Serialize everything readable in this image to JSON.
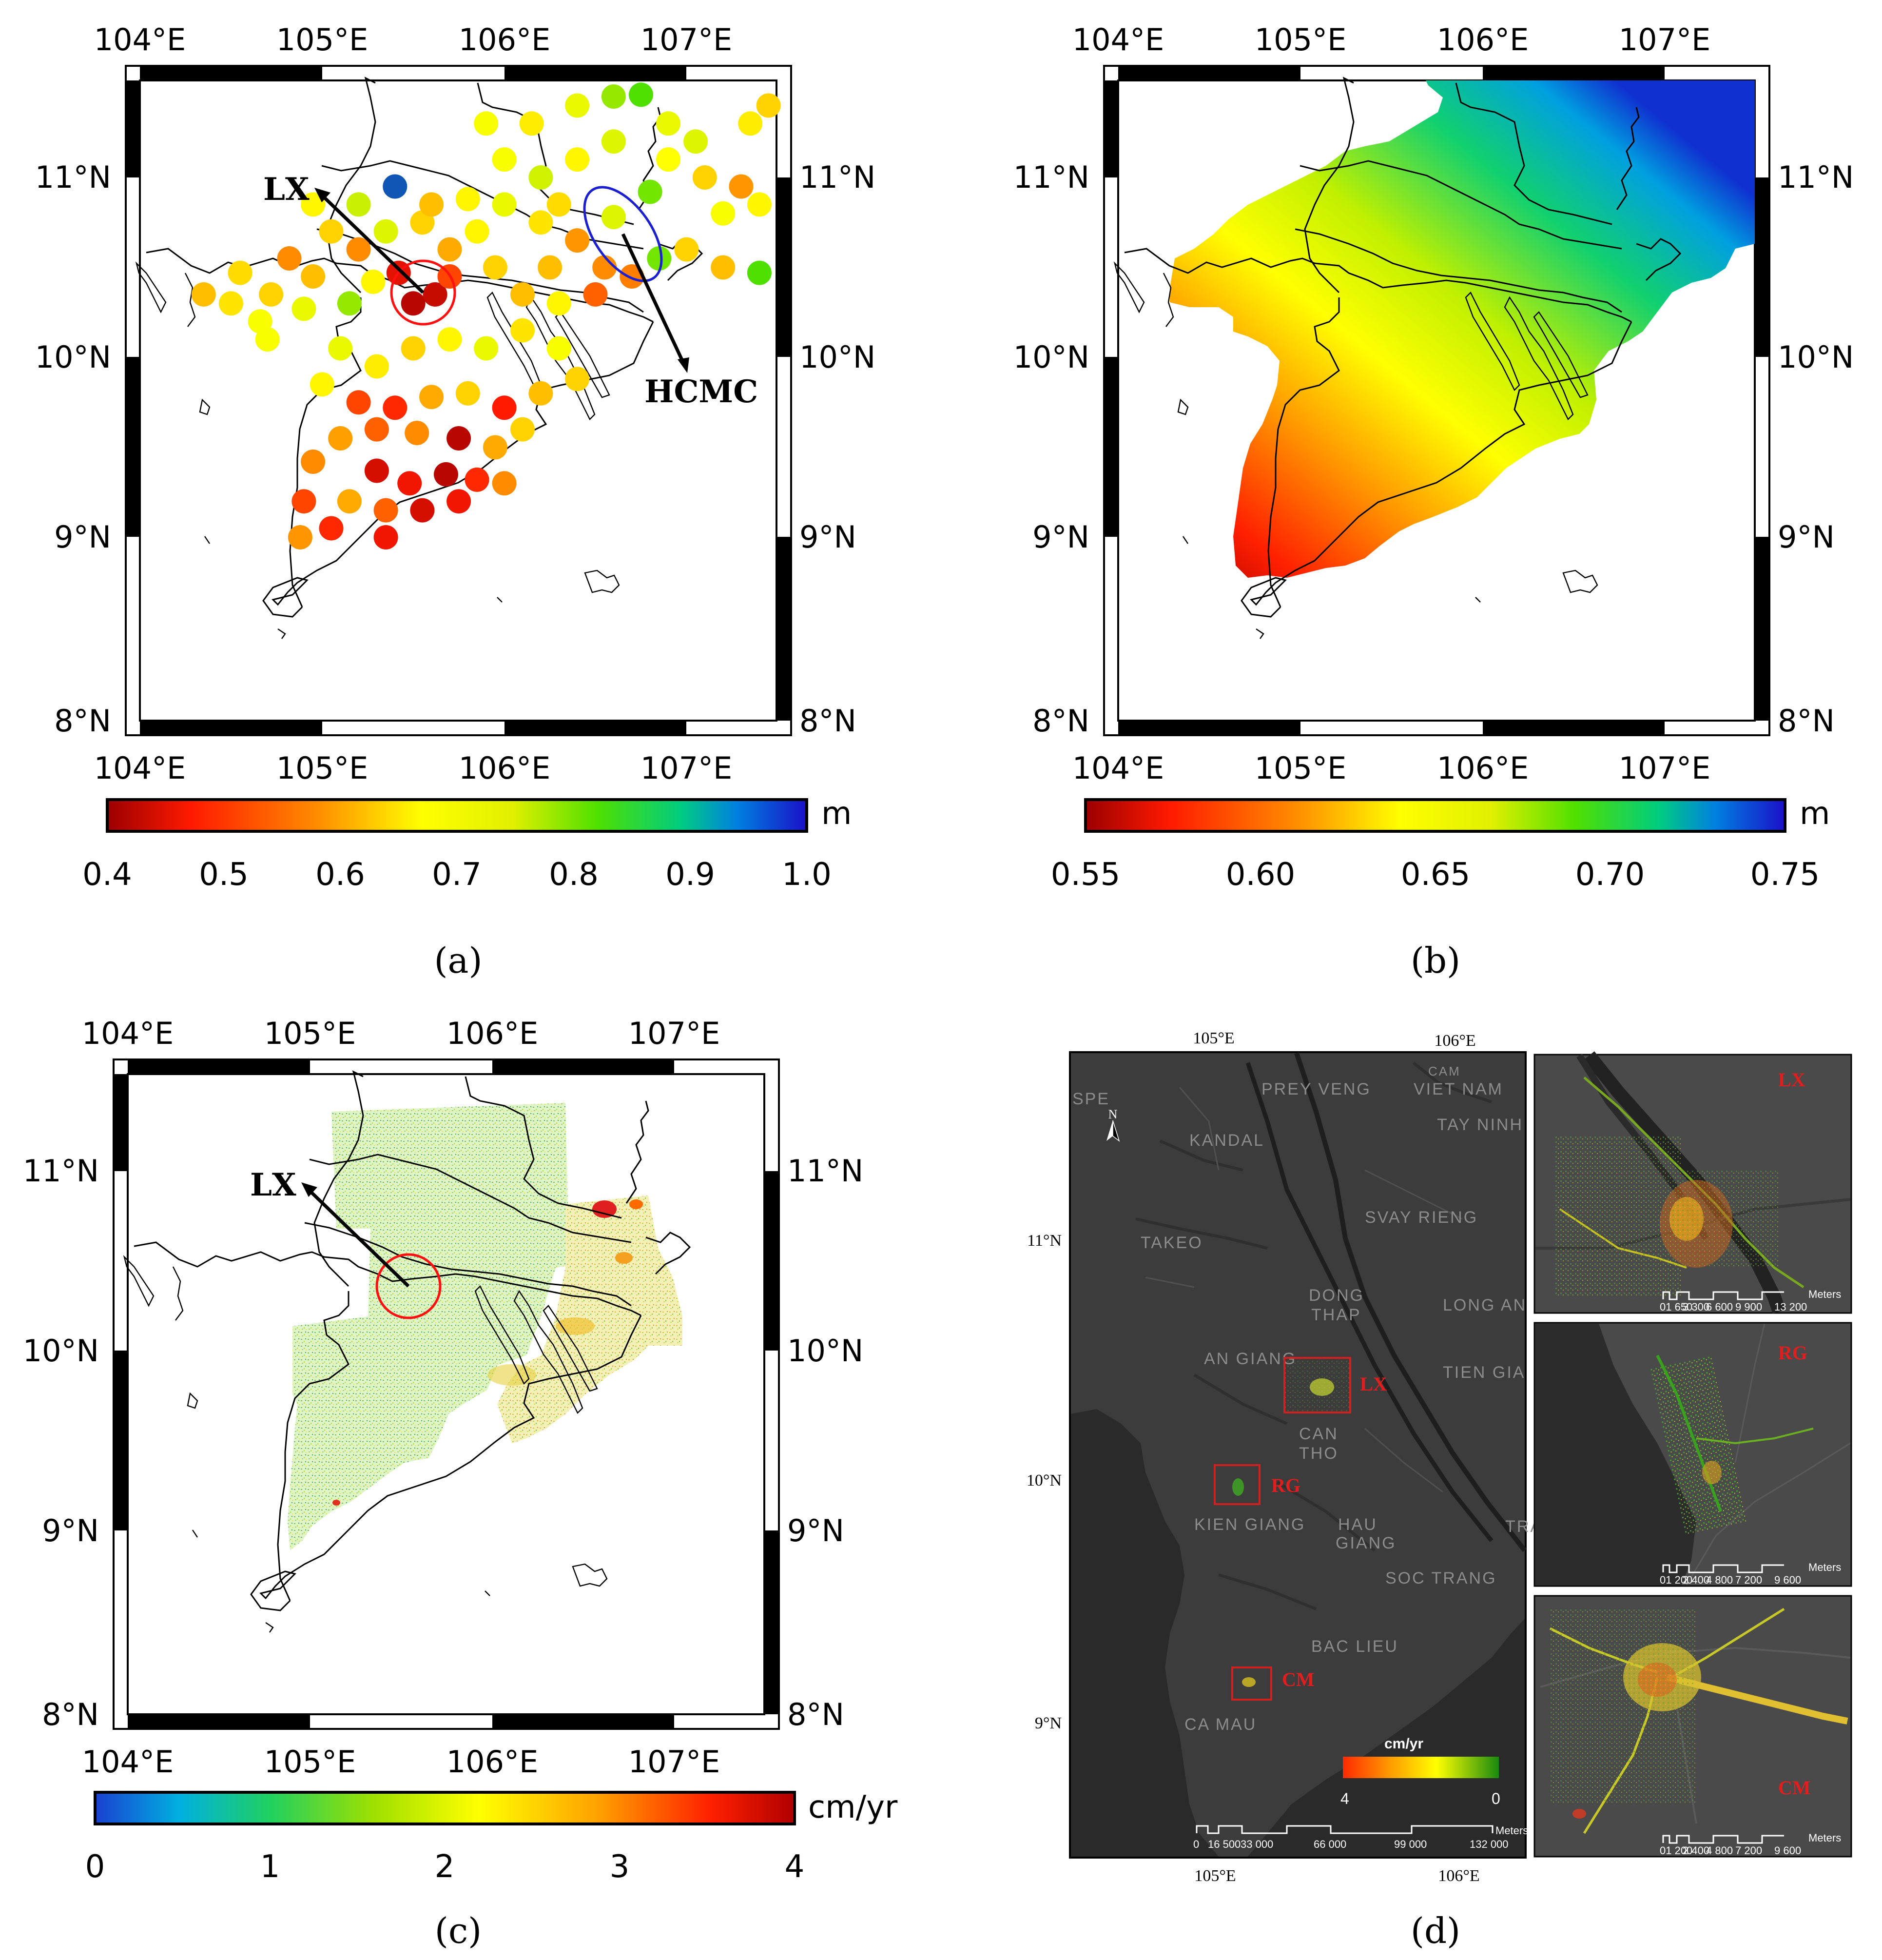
{
  "panels": {
    "a": {
      "label": "(a)",
      "lon_ticks": [
        "104°E",
        "105°E",
        "106°E",
        "107°E"
      ],
      "lat_ticks": [
        "11°N",
        "10°N",
        "9°N",
        "8°N"
      ],
      "annotations": {
        "lx": "LX",
        "hcmc": "HCMC"
      },
      "colorbar": {
        "ticks": [
          "0.4",
          "0.5",
          "0.6",
          "0.7",
          "0.8",
          "0.9",
          "1.0"
        ],
        "unit": "m"
      },
      "colors": {
        "low": "#c00000",
        "mid": "#ffff00",
        "high": "#0000cc"
      }
    },
    "b": {
      "label": "(b)",
      "lon_ticks": [
        "104°E",
        "105°E",
        "106°E",
        "107°E"
      ],
      "lat_ticks": [
        "11°N",
        "10°N",
        "9°N",
        "8°N"
      ],
      "colorbar": {
        "ticks": [
          "0.55",
          "0.60",
          "0.65",
          "0.70",
          "0.75"
        ],
        "unit": "m"
      }
    },
    "c": {
      "label": "(c)",
      "lon_ticks": [
        "104°E",
        "105°E",
        "106°E",
        "107°E"
      ],
      "lat_ticks": [
        "11°N",
        "10°N",
        "9°N",
        "8°N"
      ],
      "annotations": {
        "lx": "LX"
      },
      "colorbar": {
        "ticks": [
          "0",
          "1",
          "2",
          "3",
          "4"
        ],
        "unit": "cm/yr"
      }
    },
    "d": {
      "label": "(d)",
      "top_lon": [
        "105°E",
        "106°E"
      ],
      "bottom_lon": [
        "105°E",
        "106°E"
      ],
      "lat": [
        "11°N",
        "10°N",
        "9°N"
      ],
      "north": "N",
      "provinces": [
        "PREY VENG",
        "KANDAL",
        "VIET NAM",
        "TAY NINH",
        "TAKEO",
        "SVAY RIENG",
        "DONG",
        "THAP",
        "LONG AN",
        "AN GIANG",
        "TIEN GIA",
        "CAN",
        "THO",
        "KIEN GIANG",
        "HAU",
        "GIANG",
        "SOC TRANG",
        "TRA",
        "BAC LIEU",
        "CA MAU",
        "SPE",
        "CAM"
      ],
      "sites": [
        "LX",
        "RG",
        "CM"
      ],
      "legend": {
        "title": "cm/yr",
        "min": "4",
        "max": "0"
      },
      "scale_main": {
        "unit": "Meters",
        "labels": [
          "0",
          "16 500",
          "33 000",
          "66 000",
          "99 000",
          "132 000"
        ]
      },
      "insets": [
        {
          "site": "LX",
          "scale_unit": "Meters",
          "scale_labels": [
            "01 650",
            "3 300",
            "6 600",
            "9 900",
            "13 200"
          ]
        },
        {
          "site": "RG",
          "scale_unit": "Meters",
          "scale_labels": [
            "01 200",
            "2 400",
            "4 800",
            "7 200",
            "9 600"
          ]
        },
        {
          "site": "CM",
          "scale_unit": "Meters",
          "scale_labels": [
            "01 200",
            "2 400",
            "4 800",
            "7 200",
            "9 600"
          ]
        }
      ]
    }
  },
  "points_a": [
    {
      "lon": 104.55,
      "lat": 10.47,
      "v": 0.63
    },
    {
      "lon": 104.72,
      "lat": 10.35,
      "v": 0.62
    },
    {
      "lon": 104.66,
      "lat": 10.2,
      "v": 0.68
    },
    {
      "lon": 104.9,
      "lat": 10.27,
      "v": 0.7
    },
    {
      "lon": 104.82,
      "lat": 10.55,
      "v": 0.55
    },
    {
      "lon": 104.95,
      "lat": 10.45,
      "v": 0.6
    },
    {
      "lon": 105.15,
      "lat": 10.3,
      "v": 0.78
    },
    {
      "lon": 105.28,
      "lat": 10.42,
      "v": 0.66
    },
    {
      "lon": 105.42,
      "lat": 10.47,
      "v": 0.45
    },
    {
      "lon": 105.5,
      "lat": 10.3,
      "v": 0.42
    },
    {
      "lon": 105.62,
      "lat": 10.35,
      "v": 0.43
    },
    {
      "lon": 105.7,
      "lat": 10.45,
      "v": 0.5
    },
    {
      "lon": 105.2,
      "lat": 10.6,
      "v": 0.55
    },
    {
      "lon": 105.35,
      "lat": 10.7,
      "v": 0.72
    },
    {
      "lon": 105.55,
      "lat": 10.75,
      "v": 0.62
    },
    {
      "lon": 105.7,
      "lat": 10.6,
      "v": 0.58
    },
    {
      "lon": 105.85,
      "lat": 10.7,
      "v": 0.66
    },
    {
      "lon": 105.95,
      "lat": 10.5,
      "v": 0.62
    },
    {
      "lon": 105.1,
      "lat": 10.05,
      "v": 0.7
    },
    {
      "lon": 105.3,
      "lat": 9.95,
      "v": 0.65
    },
    {
      "lon": 105.5,
      "lat": 10.05,
      "v": 0.62
    },
    {
      "lon": 105.7,
      "lat": 10.1,
      "v": 0.66
    },
    {
      "lon": 105.9,
      "lat": 10.05,
      "v": 0.7
    },
    {
      "lon": 106.1,
      "lat": 10.15,
      "v": 0.64
    },
    {
      "lon": 106.3,
      "lat": 10.05,
      "v": 0.68
    },
    {
      "lon": 106.1,
      "lat": 10.35,
      "v": 0.6
    },
    {
      "lon": 106.3,
      "lat": 10.3,
      "v": 0.66
    },
    {
      "lon": 105.0,
      "lat": 9.85,
      "v": 0.66
    },
    {
      "lon": 105.2,
      "lat": 9.75,
      "v": 0.5
    },
    {
      "lon": 105.4,
      "lat": 9.72,
      "v": 0.48
    },
    {
      "lon": 105.6,
      "lat": 9.78,
      "v": 0.58
    },
    {
      "lon": 105.8,
      "lat": 9.8,
      "v": 0.62
    },
    {
      "lon": 106.0,
      "lat": 9.72,
      "v": 0.47
    },
    {
      "lon": 106.2,
      "lat": 9.8,
      "v": 0.6
    },
    {
      "lon": 106.4,
      "lat": 9.88,
      "v": 0.62
    },
    {
      "lon": 105.1,
      "lat": 9.55,
      "v": 0.57
    },
    {
      "lon": 105.3,
      "lat": 9.6,
      "v": 0.52
    },
    {
      "lon": 105.52,
      "lat": 9.58,
      "v": 0.55
    },
    {
      "lon": 105.75,
      "lat": 9.55,
      "v": 0.42
    },
    {
      "lon": 105.95,
      "lat": 9.5,
      "v": 0.58
    },
    {
      "lon": 106.1,
      "lat": 9.6,
      "v": 0.62
    },
    {
      "lon": 105.3,
      "lat": 9.37,
      "v": 0.44
    },
    {
      "lon": 105.48,
      "lat": 9.3,
      "v": 0.46
    },
    {
      "lon": 105.68,
      "lat": 9.35,
      "v": 0.42
    },
    {
      "lon": 105.85,
      "lat": 9.32,
      "v": 0.48
    },
    {
      "lon": 106.0,
      "lat": 9.3,
      "v": 0.55
    },
    {
      "lon": 104.95,
      "lat": 9.42,
      "v": 0.55
    },
    {
      "lon": 105.15,
      "lat": 9.2,
      "v": 0.58
    },
    {
      "lon": 105.35,
      "lat": 9.15,
      "v": 0.52
    },
    {
      "lon": 105.55,
      "lat": 9.15,
      "v": 0.44
    },
    {
      "lon": 105.75,
      "lat": 9.2,
      "v": 0.46
    },
    {
      "lon": 104.9,
      "lat": 9.2,
      "v": 0.5
    },
    {
      "lon": 104.88,
      "lat": 9.0,
      "v": 0.56
    },
    {
      "lon": 105.05,
      "lat": 9.05,
      "v": 0.48
    },
    {
      "lon": 105.35,
      "lat": 9.0,
      "v": 0.46
    },
    {
      "lon": 105.2,
      "lat": 10.85,
      "v": 0.75
    },
    {
      "lon": 105.4,
      "lat": 10.95,
      "v": 0.96
    },
    {
      "lon": 105.6,
      "lat": 10.85,
      "v": 0.6
    },
    {
      "lon": 105.8,
      "lat": 10.88,
      "v": 0.66
    },
    {
      "lon": 106.0,
      "lat": 10.85,
      "v": 0.7
    },
    {
      "lon": 106.2,
      "lat": 10.75,
      "v": 0.64
    },
    {
      "lon": 106.4,
      "lat": 10.65,
      "v": 0.56
    },
    {
      "lon": 106.55,
      "lat": 10.5,
      "v": 0.55
    },
    {
      "lon": 106.7,
      "lat": 10.45,
      "v": 0.54
    },
    {
      "lon": 106.5,
      "lat": 10.35,
      "v": 0.52
    },
    {
      "lon": 106.85,
      "lat": 10.55,
      "v": 0.8
    },
    {
      "lon": 106.6,
      "lat": 10.78,
      "v": 0.72
    },
    {
      "lon": 106.8,
      "lat": 10.92,
      "v": 0.8
    },
    {
      "lon": 106.2,
      "lat": 11.0,
      "v": 0.74
    },
    {
      "lon": 106.4,
      "lat": 11.1,
      "v": 0.66
    },
    {
      "lon": 106.6,
      "lat": 11.2,
      "v": 0.72
    },
    {
      "lon": 106.9,
      "lat": 11.3,
      "v": 0.7
    },
    {
      "lon": 106.0,
      "lat": 11.1,
      "v": 0.68
    },
    {
      "lon": 106.15,
      "lat": 11.3,
      "v": 0.65
    },
    {
      "lon": 106.4,
      "lat": 11.4,
      "v": 0.7
    },
    {
      "lon": 106.6,
      "lat": 11.45,
      "v": 0.78
    },
    {
      "lon": 106.75,
      "lat": 11.46,
      "v": 0.82
    },
    {
      "lon": 106.9,
      "lat": 11.1,
      "v": 0.67
    },
    {
      "lon": 107.05,
      "lat": 11.2,
      "v": 0.72
    },
    {
      "lon": 107.1,
      "lat": 11.0,
      "v": 0.62
    },
    {
      "lon": 107.2,
      "lat": 10.8,
      "v": 0.68
    },
    {
      "lon": 107.3,
      "lat": 10.95,
      "v": 0.56
    },
    {
      "lon": 107.4,
      "lat": 10.85,
      "v": 0.66
    },
    {
      "lon": 107.35,
      "lat": 11.3,
      "v": 0.65
    },
    {
      "lon": 107.45,
      "lat": 11.4,
      "v": 0.62
    },
    {
      "lon": 107.0,
      "lat": 10.6,
      "v": 0.62
    },
    {
      "lon": 107.2,
      "lat": 10.5,
      "v": 0.6
    },
    {
      "lon": 107.4,
      "lat": 10.47,
      "v": 0.82
    },
    {
      "lon": 106.3,
      "lat": 10.85,
      "v": 0.63
    },
    {
      "lon": 105.9,
      "lat": 11.3,
      "v": 0.68
    },
    {
      "lon": 106.25,
      "lat": 10.5,
      "v": 0.6
    },
    {
      "lon": 105.05,
      "lat": 10.7,
      "v": 0.62
    },
    {
      "lon": 104.95,
      "lat": 10.85,
      "v": 0.66
    },
    {
      "lon": 104.7,
      "lat": 10.1,
      "v": 0.68
    },
    {
      "lon": 104.5,
      "lat": 10.3,
      "v": 0.64
    },
    {
      "lon": 104.35,
      "lat": 10.35,
      "v": 0.6
    }
  ],
  "field_b": {
    "axis_bearing_deg": 35,
    "range": [
      0.55,
      0.75
    ]
  }
}
